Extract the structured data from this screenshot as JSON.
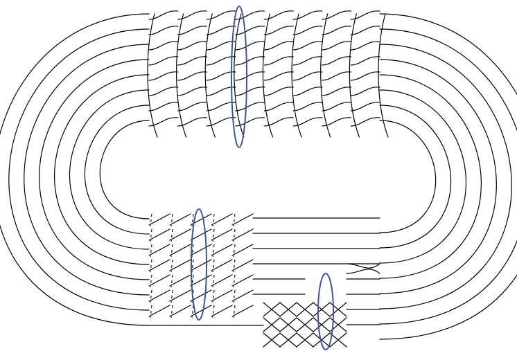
{
  "diagram": {
    "kind": "braid-closure-knot",
    "strand_count": 8,
    "stroke_color": "#000000",
    "ring_color": "#3a55a6",
    "background": "#ffffff",
    "regions": {
      "upper_braid": {
        "twist_columns": 8,
        "has_linking_ring": true
      },
      "lower_left_braid": {
        "twist_columns": 5,
        "has_linking_ring": true
      },
      "lower_right_braid": {
        "twist_columns": 5,
        "has_linking_ring": true
      }
    }
  }
}
